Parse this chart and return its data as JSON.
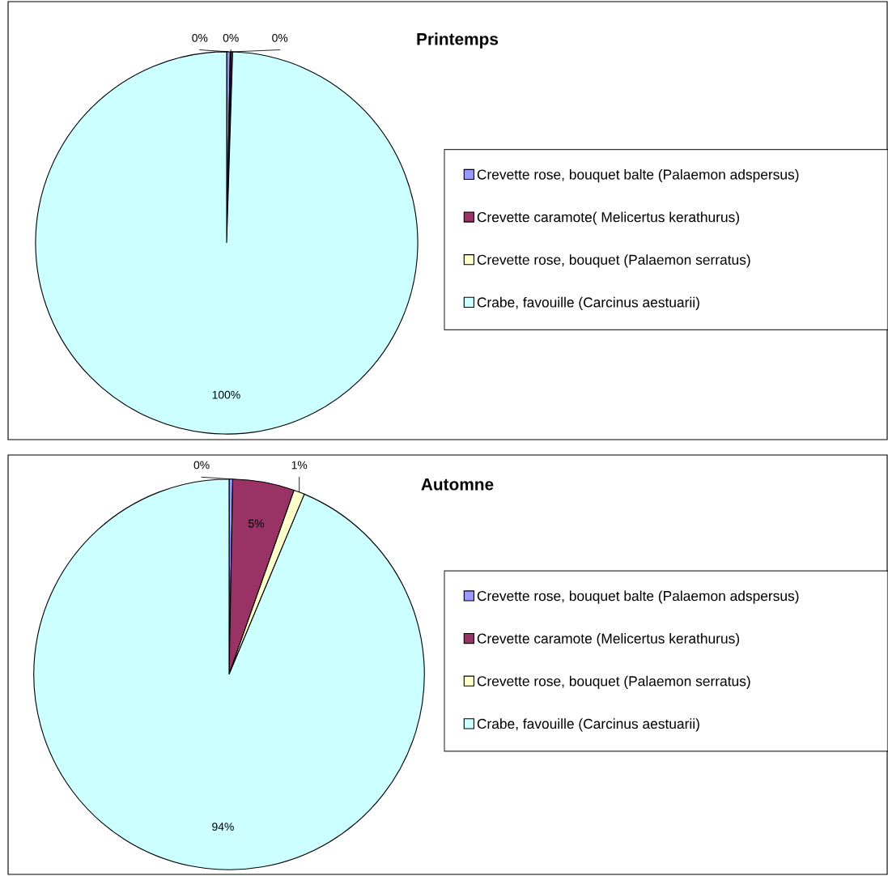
{
  "chart_data": [
    {
      "type": "pie",
      "title": "Printemps",
      "legend": "right",
      "categories": [
        "Crevette rose, bouquet balte (Palaemon adspersus)",
        "Crevette caramote( Melicertus kerathurus)",
        "Crevette rose, bouquet (Palaemon serratus)",
        "Crabe, favouille (Carcinus aestuarii)"
      ],
      "values": [
        0.3,
        0.1,
        0.1,
        99.5
      ],
      "value_labels": [
        "0%",
        "0%",
        "0%",
        "100%"
      ],
      "colors": [
        "#9999ff",
        "#993366",
        "#ffffcc",
        "#ccffff"
      ]
    },
    {
      "type": "pie",
      "title": "Automne",
      "legend": "right",
      "categories": [
        "Crevette rose, bouquet balte (Palaemon adspersus)",
        "Crevette caramote (Melicertus kerathurus)",
        "Crevette rose, bouquet (Palaemon serratus)",
        "Crabe, favouille (Carcinus aestuarii)"
      ],
      "values": [
        0.3,
        5.1,
        0.9,
        93.7
      ],
      "value_labels": [
        "0%",
        "5%",
        "1%",
        "94%"
      ],
      "colors": [
        "#9999ff",
        "#993366",
        "#ffffcc",
        "#ccffff"
      ]
    }
  ]
}
